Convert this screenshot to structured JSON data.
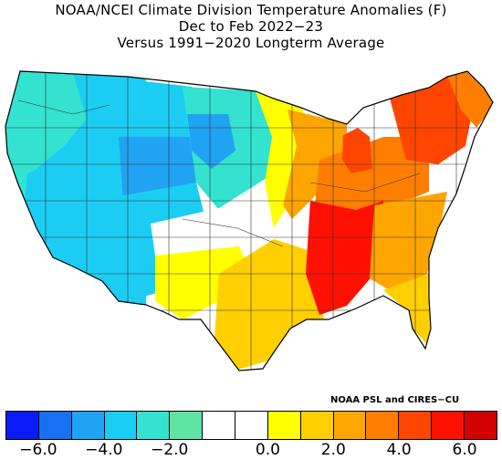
{
  "title": {
    "line1": "NOAA/NCEI Climate Division Temperature Anomalies (F)",
    "line2": "Dec to Feb 2022−23",
    "line3": "Versus 1991−2020 Longterm Average"
  },
  "credit": "NOAA PSL and CIRES−CU",
  "legend": {
    "colors": [
      "#0a1cf5",
      "#1a70f2",
      "#21a3f3",
      "#1ccdf3",
      "#33e3cf",
      "#5fe3a2",
      "#ffffff",
      "#ffffff",
      "#ffff00",
      "#ffcf00",
      "#ffa500",
      "#ff7e00",
      "#ff4500",
      "#ff1000",
      "#d20000"
    ],
    "ticks": [
      {
        "label": "−6.0",
        "pos": 0
      },
      {
        "label": "−4.0",
        "pos": 2
      },
      {
        "label": "−2.0",
        "pos": 4
      },
      {
        "label": "0.0",
        "pos": 7
      },
      {
        "label": "2.0",
        "pos": 9
      },
      {
        "label": "4.0",
        "pos": 11
      },
      {
        "label": "6.0",
        "pos": 13
      }
    ]
  },
  "regions": [
    {
      "name": "pacific-northwest",
      "color": "#33e3cf"
    },
    {
      "name": "california-nevada",
      "color": "#1ccdf3"
    },
    {
      "name": "great-basin",
      "color": "#1ccdf3"
    },
    {
      "name": "idaho-montana",
      "color": "#1ccdf3"
    },
    {
      "name": "wyoming-core",
      "color": "#21a3f3"
    },
    {
      "name": "colorado-utah",
      "color": "#1ccdf3"
    },
    {
      "name": "southwest-desert",
      "color": "#1ccdf3"
    },
    {
      "name": "northern-plains",
      "color": "#33e3cf"
    },
    {
      "name": "dakotas-cold-core",
      "color": "#21a3f3"
    },
    {
      "name": "central-plains",
      "color": "#ffffff"
    },
    {
      "name": "upper-midwest",
      "color": "#ffff00"
    },
    {
      "name": "texas-oklahoma",
      "color": "#ffcf00"
    },
    {
      "name": "west-texas",
      "color": "#ffff00"
    },
    {
      "name": "midwest",
      "color": "#ffa500"
    },
    {
      "name": "ohio-valley",
      "color": "#ff7e00"
    },
    {
      "name": "lower-mississippi",
      "color": "#ff1000"
    },
    {
      "name": "southeast",
      "color": "#ffa500"
    },
    {
      "name": "florida",
      "color": "#ffcf00"
    },
    {
      "name": "northeast",
      "color": "#ff4500"
    },
    {
      "name": "new-england",
      "color": "#ff7e00"
    },
    {
      "name": "michigan",
      "color": "#ff4500"
    }
  ]
}
